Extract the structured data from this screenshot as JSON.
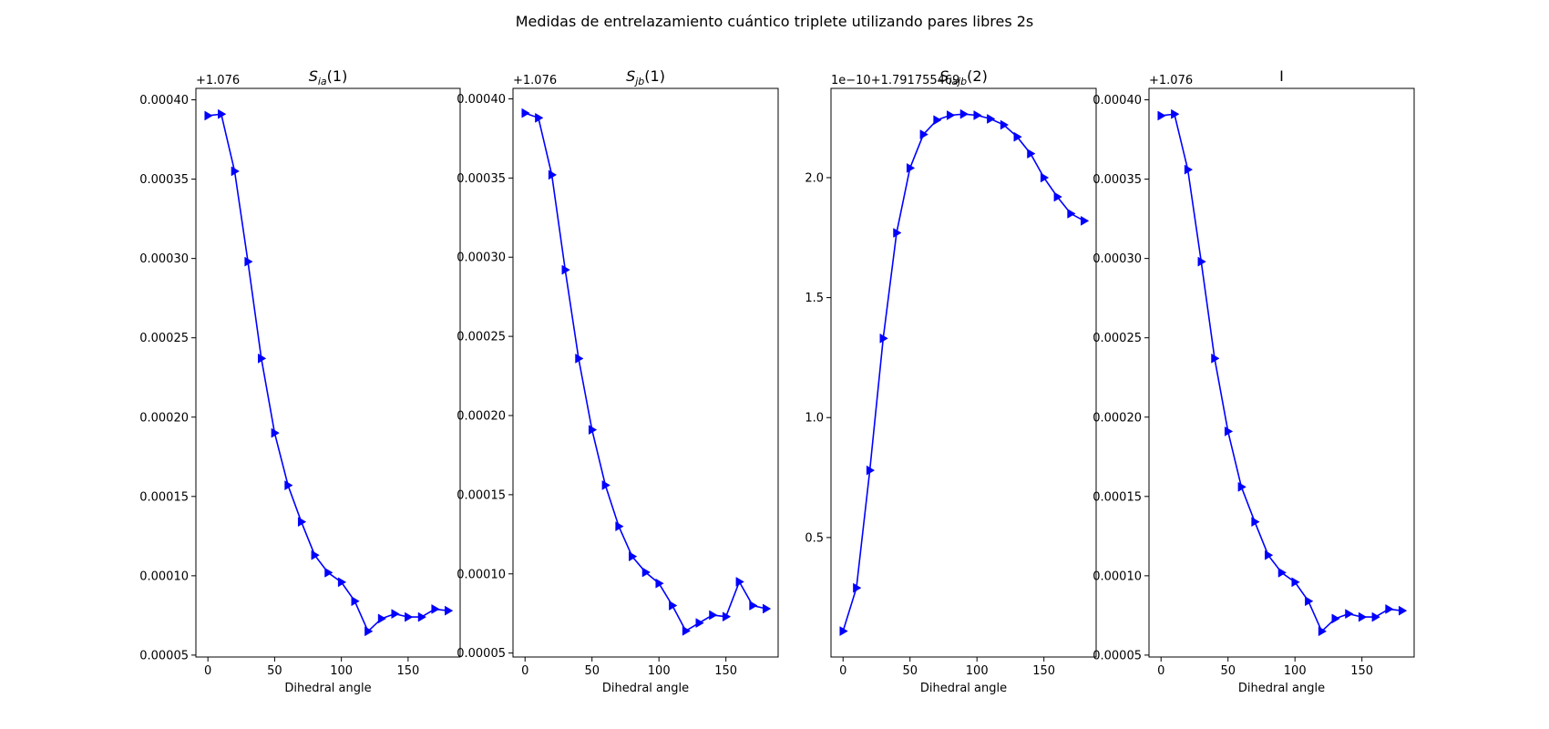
{
  "figure": {
    "suptitle": "Medidas de entrelazamiento cuántico triplete utilizando pares libres 2s"
  },
  "colors": {
    "series": "#0000ff",
    "axes": "#000000",
    "background": "#ffffff"
  },
  "chart_data": [
    {
      "type": "line",
      "title": "S_ia(1)",
      "title_base": "S",
      "title_sub": "ia",
      "title_suffix": "(1)",
      "xlabel": "Dihedral angle",
      "ylabel": "",
      "offset_label": "+1.076",
      "marker": "triangle-right",
      "x": [
        0,
        10,
        20,
        30,
        40,
        50,
        60,
        70,
        80,
        90,
        100,
        110,
        120,
        130,
        140,
        150,
        160,
        170,
        180
      ],
      "y": [
        0.00039,
        0.000391,
        0.000355,
        0.000298,
        0.000237,
        0.00019,
        0.000157,
        0.000134,
        0.000113,
        0.000102,
        9.6e-05,
        8.4e-05,
        6.5e-05,
        7.3e-05,
        7.6e-05,
        7.4e-05,
        7.4e-05,
        7.9e-05,
        7.8e-05
      ],
      "xlim": [
        -9,
        189
      ],
      "ylim": [
        4.88e-05,
        0.0004072
      ],
      "xticks": [
        0,
        50,
        100,
        150
      ],
      "xtick_labels": [
        "0",
        "50",
        "100",
        "150"
      ],
      "yticks": [
        5e-05,
        0.0001,
        0.00015,
        0.0002,
        0.00025,
        0.0003,
        0.00035,
        0.0004
      ],
      "ytick_labels": [
        "0.00005",
        "0.00010",
        "0.00015",
        "0.00020",
        "0.00025",
        "0.00030",
        "0.00035",
        "0.00040"
      ]
    },
    {
      "type": "line",
      "title": "S_jb(1)",
      "title_base": "S",
      "title_sub": "jb",
      "title_suffix": "(1)",
      "xlabel": "Dihedral angle",
      "ylabel": "",
      "offset_label": "+1.076",
      "marker": "triangle-right",
      "x": [
        0,
        10,
        20,
        30,
        40,
        50,
        60,
        70,
        80,
        90,
        100,
        110,
        120,
        130,
        140,
        150,
        160,
        170,
        180
      ],
      "y": [
        0.000391,
        0.000388,
        0.000352,
        0.000292,
        0.000236,
        0.000191,
        0.000156,
        0.00013,
        0.000111,
        0.000101,
        9.4e-05,
        8e-05,
        6.4e-05,
        6.9e-05,
        7.4e-05,
        7.3e-05,
        9.5e-05,
        8e-05,
        7.8e-05
      ],
      "xlim": [
        -9,
        189
      ],
      "ylim": [
        4.75e-05,
        0.0004066
      ],
      "xticks": [
        0,
        50,
        100,
        150
      ],
      "xtick_labels": [
        "0",
        "50",
        "100",
        "150"
      ],
      "yticks": [
        5e-05,
        0.0001,
        0.00015,
        0.0002,
        0.00025,
        0.0003,
        0.00035,
        0.0004
      ],
      "ytick_labels": [
        "0.00005",
        "0.00010",
        "0.00015",
        "0.00020",
        "0.00025",
        "0.00030",
        "0.00035",
        "0.00040"
      ]
    },
    {
      "type": "line",
      "title": "S_iajb(2)",
      "title_base": "S",
      "title_sub": "iajb",
      "title_suffix": "(2)",
      "xlabel": "Dihedral angle",
      "ylabel": "",
      "offset_label": "1e−10+1.791755469",
      "marker": "triangle-right",
      "x": [
        0,
        10,
        20,
        30,
        40,
        50,
        60,
        70,
        80,
        90,
        100,
        110,
        120,
        130,
        140,
        150,
        160,
        170,
        180
      ],
      "y": [
        0.11,
        0.29,
        0.78,
        1.33,
        1.77,
        2.04,
        2.18,
        2.24,
        2.26,
        2.265,
        2.26,
        2.245,
        2.22,
        2.17,
        2.1,
        2.0,
        1.92,
        1.85,
        1.82
      ],
      "xlim": [
        -9,
        189
      ],
      "ylim": [
        0.002,
        2.372
      ],
      "xticks": [
        0,
        50,
        100,
        150
      ],
      "xtick_labels": [
        "0",
        "50",
        "100",
        "150"
      ],
      "yticks": [
        0.5,
        1.0,
        1.5,
        2.0
      ],
      "ytick_labels": [
        "0.5",
        "1.0",
        "1.5",
        "2.0"
      ]
    },
    {
      "type": "line",
      "title": "I",
      "title_base": "I",
      "title_sub": "",
      "title_suffix": "",
      "xlabel": "Dihedral angle",
      "ylabel": "",
      "offset_label": "+1.076",
      "marker": "triangle-right",
      "x": [
        0,
        10,
        20,
        30,
        40,
        50,
        60,
        70,
        80,
        90,
        100,
        110,
        120,
        130,
        140,
        150,
        160,
        170,
        180
      ],
      "y": [
        0.00039,
        0.000391,
        0.000356,
        0.000298,
        0.000237,
        0.000191,
        0.000156,
        0.000134,
        0.000113,
        0.000102,
        9.6e-05,
        8.4e-05,
        6.5e-05,
        7.3e-05,
        7.6e-05,
        7.4e-05,
        7.4e-05,
        7.9e-05,
        7.8e-05
      ],
      "xlim": [
        -9,
        189
      ],
      "ylim": [
        4.88e-05,
        0.0004072
      ],
      "xticks": [
        0,
        50,
        100,
        150
      ],
      "xtick_labels": [
        "0",
        "50",
        "100",
        "150"
      ],
      "yticks": [
        5e-05,
        0.0001,
        0.00015,
        0.0002,
        0.00025,
        0.0003,
        0.00035,
        0.0004
      ],
      "ytick_labels": [
        "0.00005",
        "0.00010",
        "0.00015",
        "0.00020",
        "0.00025",
        "0.00030",
        "0.00035",
        "0.00040"
      ]
    }
  ]
}
